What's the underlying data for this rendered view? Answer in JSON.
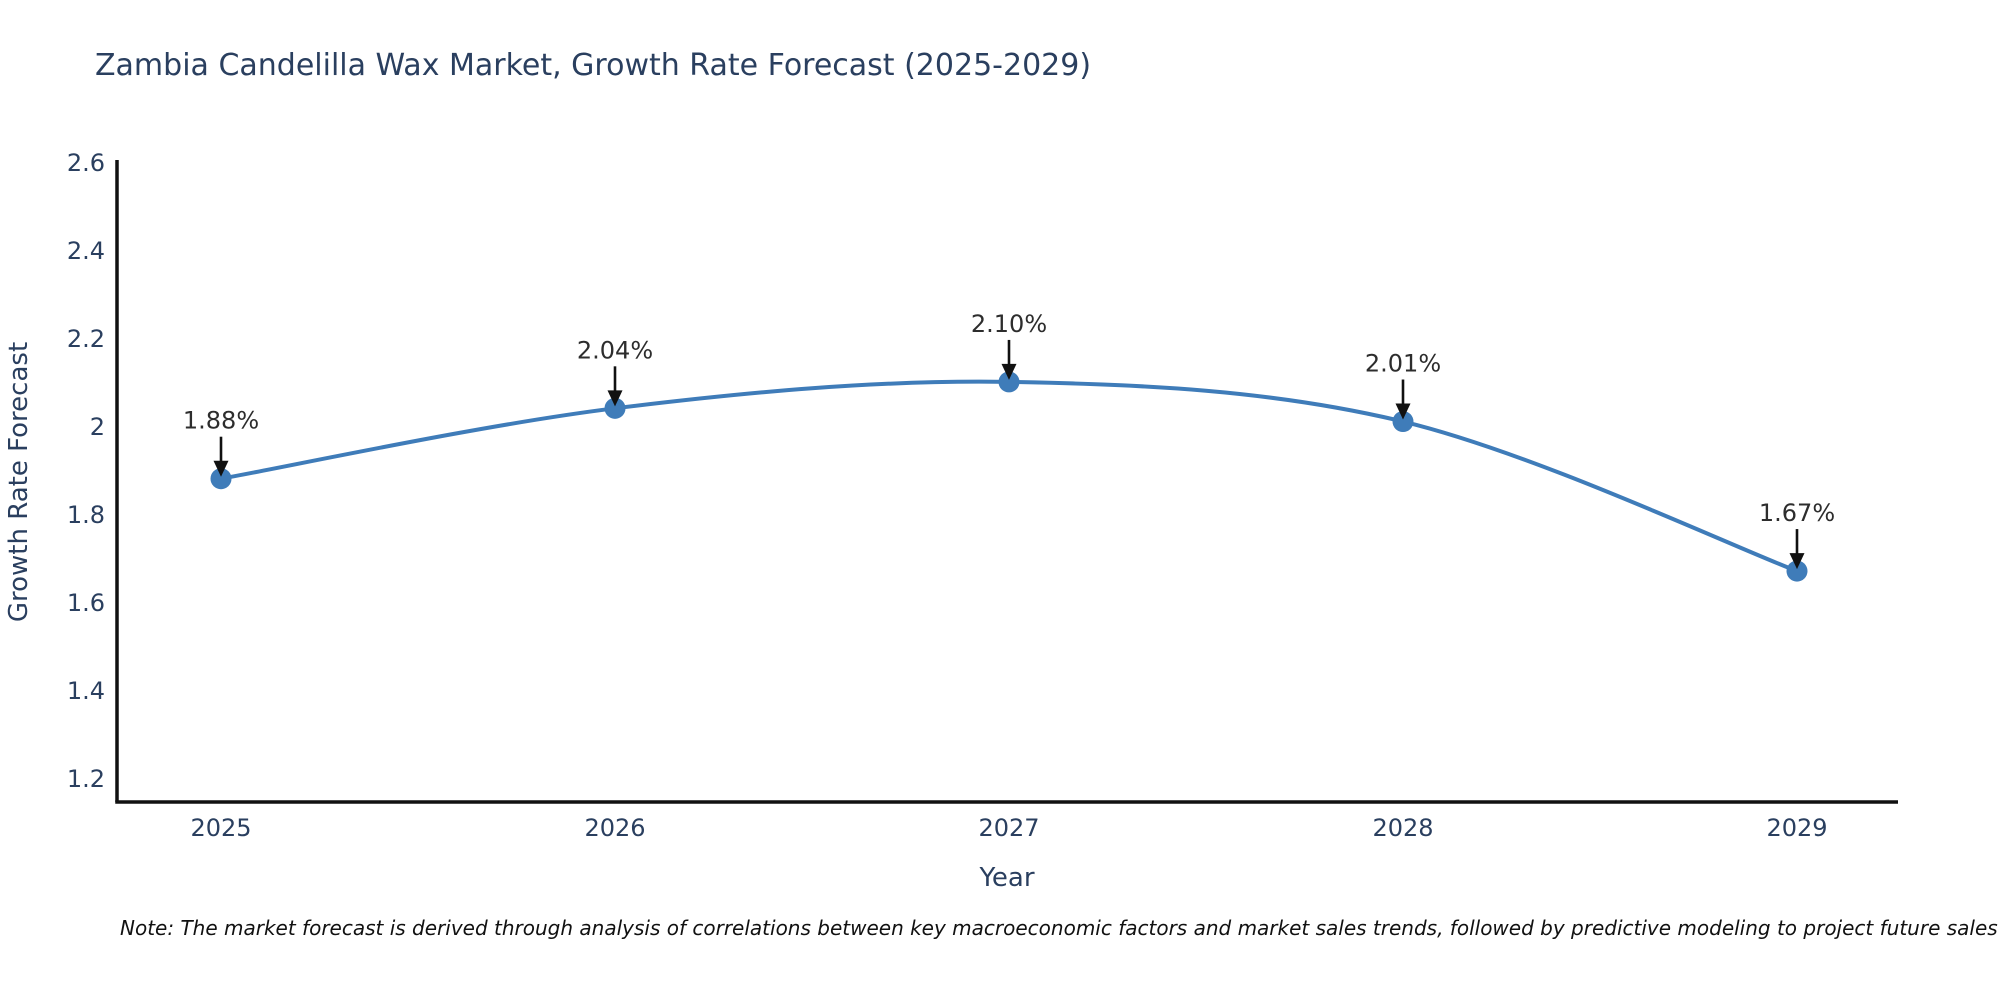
{
  "figure": {
    "note": "Note: The market forecast is derived through analysis of correlations between key macroeconomic factors and market sales trends, followed by predictive modeling to project future sales"
  },
  "chart_data": {
    "type": "line",
    "title": "Zambia Candelilla Wax Market, Growth Rate Forecast (2025-2029)",
    "xlabel": "Year",
    "ylabel": "Growth Rate Forecast",
    "categories": [
      "2025",
      "2026",
      "2027",
      "2028",
      "2029"
    ],
    "values": [
      1.88,
      2.04,
      2.1,
      2.01,
      1.67
    ],
    "point_labels": [
      "1.88%",
      "2.04%",
      "2.10%",
      "2.01%",
      "1.67%"
    ],
    "y_ticks": [
      1.2,
      1.4,
      1.6,
      1.8,
      2.0,
      2.2,
      2.4,
      2.6
    ],
    "y_tick_labels": [
      "1.2",
      "1.4",
      "1.6",
      "1.8",
      "2",
      "2.2",
      "2.4",
      "2.6"
    ],
    "ylim": [
      1.145,
      2.6
    ],
    "grid": false,
    "legend": "none",
    "line_shape": "spline",
    "colors": {
      "line": "#3f7cb9",
      "marker": "#3f7cb9",
      "axis": "#111111",
      "axis_text": "#2a3f5f",
      "annotation_text": "#2d2d2d",
      "arrow": "#111111"
    }
  }
}
